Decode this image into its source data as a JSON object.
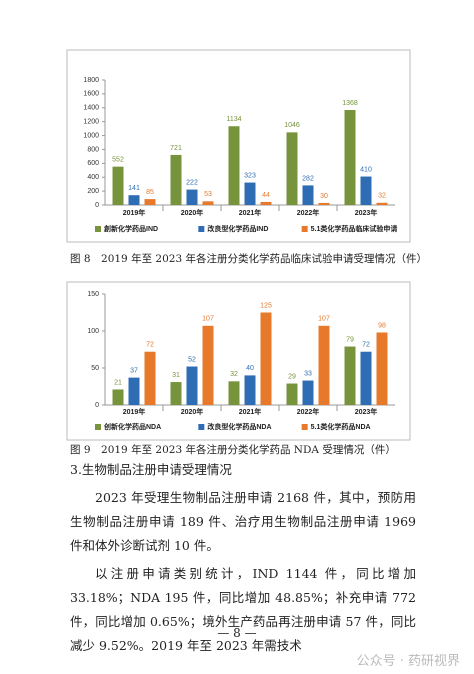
{
  "chart_data": [
    {
      "type": "bar",
      "categories": [
        "2019年",
        "2020年",
        "2021年",
        "2022年",
        "2023年"
      ],
      "series": [
        {
          "name": "創新化学药品IND",
          "color": "#77933c",
          "values": [
            552,
            721,
            1134,
            1046,
            1368
          ]
        },
        {
          "name": "改良型化学药品IND",
          "color": "#2e6db4",
          "values": [
            141,
            222,
            323,
            282,
            410
          ]
        },
        {
          "name": "5.1类化学药品临床试验申请",
          "color": "#e7792b",
          "values": [
            85,
            53,
            44,
            30,
            32
          ]
        }
      ],
      "ylim": [
        0,
        1800
      ],
      "yticks": [
        0,
        200,
        400,
        600,
        800,
        1000,
        1200,
        1400,
        1600,
        1800
      ],
      "grid": false,
      "legend": "bottom",
      "caption": "图 8　2019 年至 2023 年各注册分类化学药品临床试验申请受理情况（件）"
    },
    {
      "type": "bar",
      "categories": [
        "2019年",
        "2020年",
        "2021年",
        "2022年",
        "2023年"
      ],
      "series": [
        {
          "name": "创新化学药品NDA",
          "color": "#77933c",
          "values": [
            21,
            31,
            32,
            29,
            79
          ]
        },
        {
          "name": "改良型化学药品NDA",
          "color": "#2e6db4",
          "values": [
            37,
            52,
            40,
            33,
            72
          ]
        },
        {
          "name": "5.1类化学药品NDA",
          "color": "#e7792b",
          "values": [
            72,
            107,
            125,
            107,
            98
          ]
        }
      ],
      "ylim": [
        0,
        150
      ],
      "yticks": [
        0,
        50,
        100,
        150
      ],
      "grid": false,
      "legend": "bottom",
      "caption": "图 9　2019 年至 2023 年各注册分类化学药品 NDA 受理情况（件）"
    }
  ],
  "section": {
    "heading": "3.生物制品注册申请受理情况",
    "paragraphs": [
      "2023 年受理生物制品注册申请 2168 件，其中，预防用生物制品注册申请 189 件、治疗用生物制品注册申请 1969 件和体外诊断试剂 10 件。",
      "以注册申请类别统计，IND 1144 件，同比增加 33.18%；NDA 195 件，同比增加 48.85%；补充申请 772 件，同比增加 0.65%；境外生产药品再注册申请 57 件，同比减少 9.52%。2019 年至 2023 年需技术"
    ]
  },
  "page_number": "— 8 —",
  "watermark": "公众号 · 药研视界"
}
